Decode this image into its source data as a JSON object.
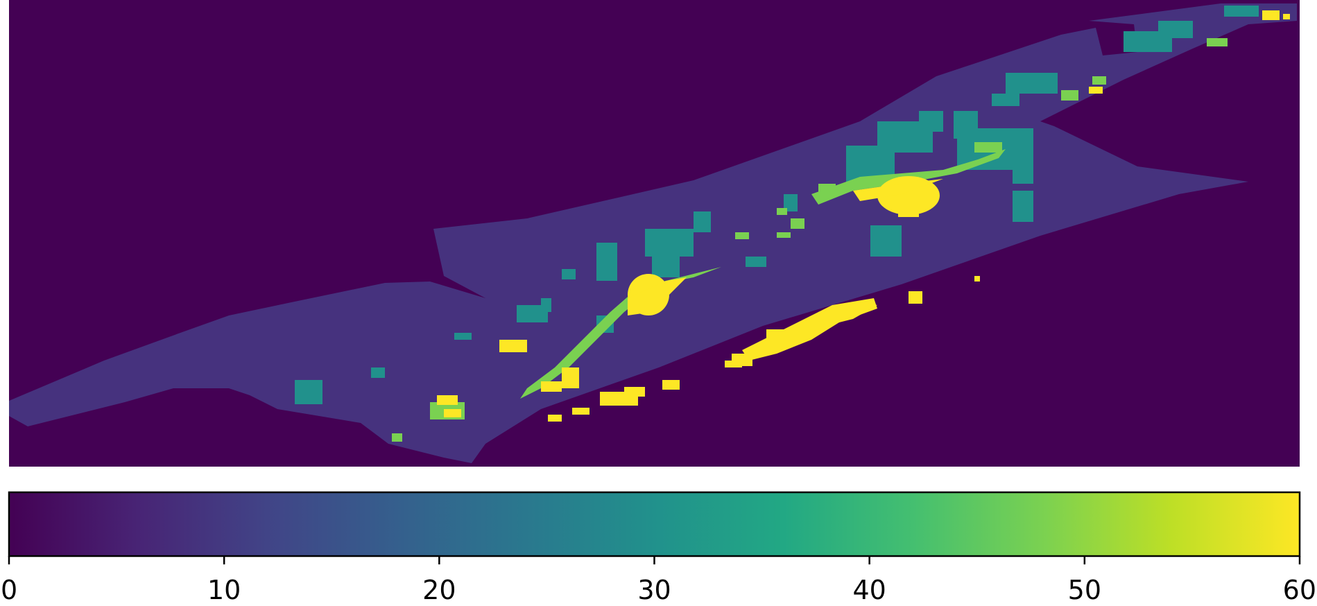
{
  "chart_data": {
    "type": "heatmap",
    "title": "",
    "xlabel": "",
    "ylabel": "",
    "colormap": "viridis",
    "colorbar": {
      "orientation": "horizontal",
      "placement": "bottom",
      "range": [
        0,
        60
      ],
      "ticks": [
        0,
        10,
        20,
        30,
        40,
        50,
        60
      ],
      "tick_labels": [
        "0",
        "10",
        "20",
        "30",
        "40",
        "50",
        "60"
      ]
    },
    "background_value": 0,
    "regions": [
      {
        "class": "swath-outline",
        "value": 12
      },
      {
        "class": "moderate-patches",
        "value": 32
      },
      {
        "class": "high-streak",
        "value": 48
      },
      {
        "class": "peak-blobs",
        "value": 60
      }
    ],
    "grid": false
  },
  "colors": {
    "viridis_0": "#440154",
    "viridis_10": "#472c7a",
    "viridis_20": "#3b518b",
    "viridis_30": "#2c718e",
    "viridis_40": "#21918c",
    "viridis_50": "#5ec962",
    "viridis_60": "#fde725"
  }
}
